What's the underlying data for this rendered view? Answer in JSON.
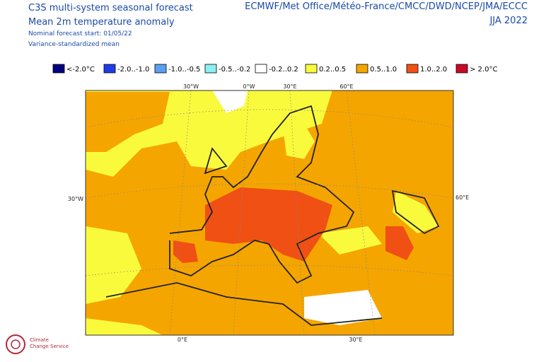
{
  "header": {
    "title_lines": [
      "C3S multi-system seasonal forecast",
      "Mean 2m temperature anomaly"
    ],
    "notes": [
      "Nominal forecast start: 01/05/22",
      "Variance-standardized mean"
    ],
    "source": "ECMWF/Met Office/Météo-France/CMCC/DWD/NCEP/JMA/ECCC",
    "period": "JJA 2022"
  },
  "legend": [
    {
      "label": "<-2.0°C",
      "color": "#000080"
    },
    {
      "label": "-2.0..-1.0",
      "color": "#1e3ce6"
    },
    {
      "label": "-1.0..-0.5",
      "color": "#5aa0f0"
    },
    {
      "label": "-0.5..-0.2",
      "color": "#8cf0f0"
    },
    {
      "label": "-0.2..0.2",
      "color": "#ffffff"
    },
    {
      "label": "0.2..0.5",
      "color": "#fafa3c"
    },
    {
      "label": "0.5..1.0",
      "color": "#f5a500"
    },
    {
      "label": "1.0..2.0",
      "color": "#f05014"
    },
    {
      "label": "> 2.0°C",
      "color": "#c80a28"
    }
  ],
  "graticule_labels": {
    "top": [
      "30°W",
      "0°W",
      "30°E",
      "60°E"
    ],
    "left": "30°W",
    "right": "60°E",
    "bottom": [
      "0°E",
      "30°E"
    ]
  },
  "logo": [
    "Climate",
    "Change Service"
  ]
}
